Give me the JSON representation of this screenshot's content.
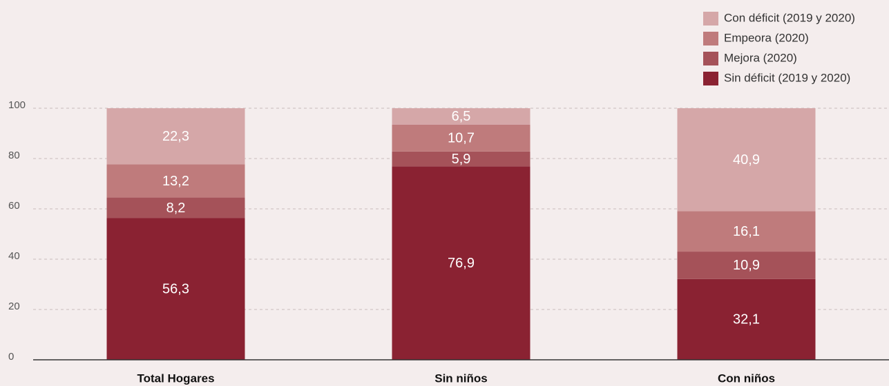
{
  "chart_data": {
    "type": "stacked_bar",
    "categories": [
      "Total Hogares",
      "Sin niños",
      "Con niños"
    ],
    "series": [
      {
        "name": "Sin déficit (2019 y 2020)",
        "color": "#8a2232",
        "values": [
          56.3,
          76.9,
          32.1
        ],
        "value_labels": [
          "56,3",
          "76,9",
          "32,1"
        ]
      },
      {
        "name": "Mejora (2020)",
        "color": "#a55259",
        "values": [
          8.2,
          5.9,
          10.9
        ],
        "value_labels": [
          "8,2",
          "5,9",
          "10,9"
        ]
      },
      {
        "name": "Empeora (2020)",
        "color": "#bf7b7c",
        "values": [
          13.2,
          10.7,
          16.1
        ],
        "value_labels": [
          "13,2",
          "10,7",
          "16,1"
        ]
      },
      {
        "name": "Con déficit (2019 y 2020)",
        "color": "#d5a7a8",
        "values": [
          22.3,
          6.5,
          40.9
        ],
        "value_labels": [
          "22,3",
          "6,5",
          "40,9"
        ]
      }
    ],
    "ylim": [
      0,
      100
    ],
    "yticks": [
      0,
      20,
      40,
      60,
      80,
      100
    ],
    "grid": true,
    "legend": "top-right"
  }
}
